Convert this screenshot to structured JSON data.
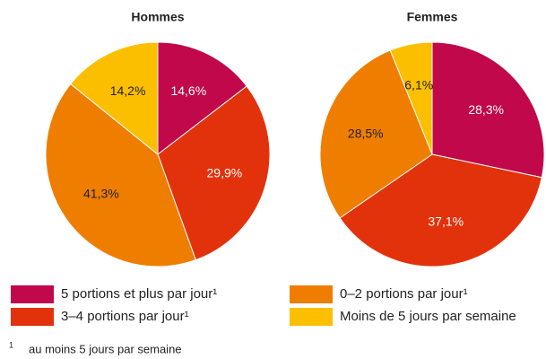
{
  "chart_data": [
    {
      "type": "pie",
      "title": "Hommes",
      "values": [
        14.6,
        29.9,
        41.3,
        14.2
      ],
      "value_labels": [
        "14,6%",
        "29,9%",
        "41,3%",
        "14,2%"
      ]
    },
    {
      "type": "pie",
      "title": "Femmes",
      "values": [
        28.3,
        37.1,
        28.5,
        6.1
      ],
      "value_labels": [
        "28,3%",
        "37,1%",
        "28,5%",
        "6,1%"
      ]
    }
  ],
  "legend": {
    "labels": [
      "5 portions et plus par jour¹",
      "3–4 portions par jour¹",
      "0–2 portions par jour¹",
      "Moins de 5 jours par semaine"
    ],
    "colors": [
      "#c0084a",
      "#e2320c",
      "#ee7d00",
      "#fbbf00"
    ]
  },
  "footnote": {
    "marker": "1",
    "text": "au moins 5 jours par semaine"
  }
}
